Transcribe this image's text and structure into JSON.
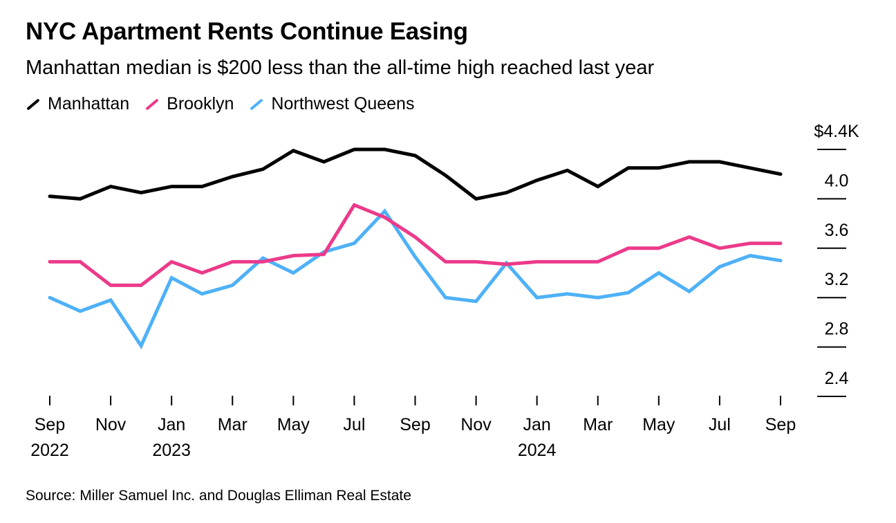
{
  "title": "NYC Apartment Rents Continue Easing",
  "subtitle": "Manhattan median is $200 less than the all-time high reached last year",
  "source": "Source: Miller Samuel Inc. and Douglas Elliman Real Estate",
  "chart_data": {
    "type": "line",
    "title": "NYC Apartment Rents Continue Easing",
    "x": [
      "2022-09",
      "2022-10",
      "2022-11",
      "2022-12",
      "2023-01",
      "2023-02",
      "2023-03",
      "2023-04",
      "2023-05",
      "2023-06",
      "2023-07",
      "2023-08",
      "2023-09",
      "2023-10",
      "2023-11",
      "2023-12",
      "2024-01",
      "2024-02",
      "2024-03",
      "2024-04",
      "2024-05",
      "2024-06",
      "2024-07",
      "2024-08",
      "2024-09"
    ],
    "x_tick_labels": [
      {
        "month": "Sep",
        "year": "2022"
      },
      {
        "month": "Nov",
        "year": ""
      },
      {
        "month": "Jan",
        "year": "2023"
      },
      {
        "month": "Mar",
        "year": ""
      },
      {
        "month": "May",
        "year": ""
      },
      {
        "month": "Jul",
        "year": ""
      },
      {
        "month": "Sep",
        "year": ""
      },
      {
        "month": "Nov",
        "year": ""
      },
      {
        "month": "Jan",
        "year": "2024"
      },
      {
        "month": "Mar",
        "year": ""
      },
      {
        "month": "May",
        "year": ""
      },
      {
        "month": "Jul",
        "year": ""
      },
      {
        "month": "Sep",
        "year": ""
      }
    ],
    "y_ticks": [
      4.4,
      4.0,
      3.6,
      3.2,
      2.8,
      2.4
    ],
    "y_tick_labels": [
      "$4.4K",
      "4.0",
      "3.6",
      "3.2",
      "2.8",
      "2.4"
    ],
    "ylim": [
      2.4,
      4.4
    ],
    "y_axis_side": "right",
    "grid": false,
    "legend_placement": "top-left",
    "series": [
      {
        "name": "Manhattan",
        "color": "#000000",
        "values": [
          4.02,
          4.0,
          4.1,
          4.05,
          4.1,
          4.1,
          4.18,
          4.24,
          4.39,
          4.3,
          4.4,
          4.4,
          4.35,
          4.19,
          4.0,
          4.05,
          4.15,
          4.23,
          4.1,
          4.25,
          4.25,
          4.3,
          4.3,
          4.25,
          4.2
        ]
      },
      {
        "name": "Brooklyn",
        "color": "#ec3a8a",
        "values": [
          3.49,
          3.49,
          3.3,
          3.3,
          3.49,
          3.4,
          3.49,
          3.49,
          3.54,
          3.55,
          3.95,
          3.85,
          3.69,
          3.49,
          3.49,
          3.47,
          3.49,
          3.49,
          3.49,
          3.6,
          3.6,
          3.69,
          3.6,
          3.64,
          3.64
        ]
      },
      {
        "name": "Northwest Queens",
        "color": "#4eb1f7",
        "values": [
          3.2,
          3.09,
          3.18,
          2.81,
          3.36,
          3.23,
          3.3,
          3.52,
          3.4,
          3.57,
          3.64,
          3.9,
          3.53,
          3.2,
          3.17,
          3.48,
          3.2,
          3.23,
          3.2,
          3.24,
          3.4,
          3.25,
          3.45,
          3.54,
          3.5
        ]
      }
    ]
  }
}
